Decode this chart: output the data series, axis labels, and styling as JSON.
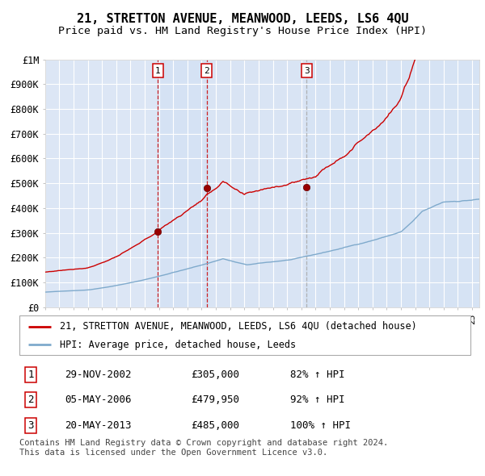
{
  "title": "21, STRETTON AVENUE, MEANWOOD, LEEDS, LS6 4QU",
  "subtitle": "Price paid vs. HM Land Registry's House Price Index (HPI)",
  "plot_bg_color": "#dce6f5",
  "grid_color": "#ffffff",
  "hpi_line_color": "#7faacc",
  "price_line_color": "#cc0000",
  "sale_marker_color": "#990000",
  "vline_sale_color": "#cc0000",
  "vline3_color": "#aaaaaa",
  "ylim": [
    0,
    1000000
  ],
  "yticks": [
    0,
    100000,
    200000,
    300000,
    400000,
    500000,
    600000,
    700000,
    800000,
    900000,
    1000000
  ],
  "ytick_labels": [
    "£0",
    "£100K",
    "£200K",
    "£300K",
    "£400K",
    "£500K",
    "£600K",
    "£700K",
    "£800K",
    "£900K",
    "£1M"
  ],
  "xlim_start": 1995.0,
  "xlim_end": 2025.5,
  "sale1_x": 2002.91,
  "sale1_y": 305000,
  "sale2_x": 2006.35,
  "sale2_y": 479950,
  "sale3_x": 2013.38,
  "sale3_y": 485000,
  "legend_line1": "21, STRETTON AVENUE, MEANWOOD, LEEDS, LS6 4QU (detached house)",
  "legend_line2": "HPI: Average price, detached house, Leeds",
  "table_rows": [
    [
      "1",
      "29-NOV-2002",
      "£305,000",
      "82% ↑ HPI"
    ],
    [
      "2",
      "05-MAY-2006",
      "£479,950",
      "92% ↑ HPI"
    ],
    [
      "3",
      "20-MAY-2013",
      "£485,000",
      "100% ↑ HPI"
    ]
  ],
  "footer": "Contains HM Land Registry data © Crown copyright and database right 2024.\nThis data is licensed under the Open Government Licence v3.0.",
  "title_fontsize": 11,
  "subtitle_fontsize": 9.5,
  "axis_fontsize": 8.5,
  "legend_fontsize": 8.5,
  "table_fontsize": 9,
  "footer_fontsize": 7.5
}
